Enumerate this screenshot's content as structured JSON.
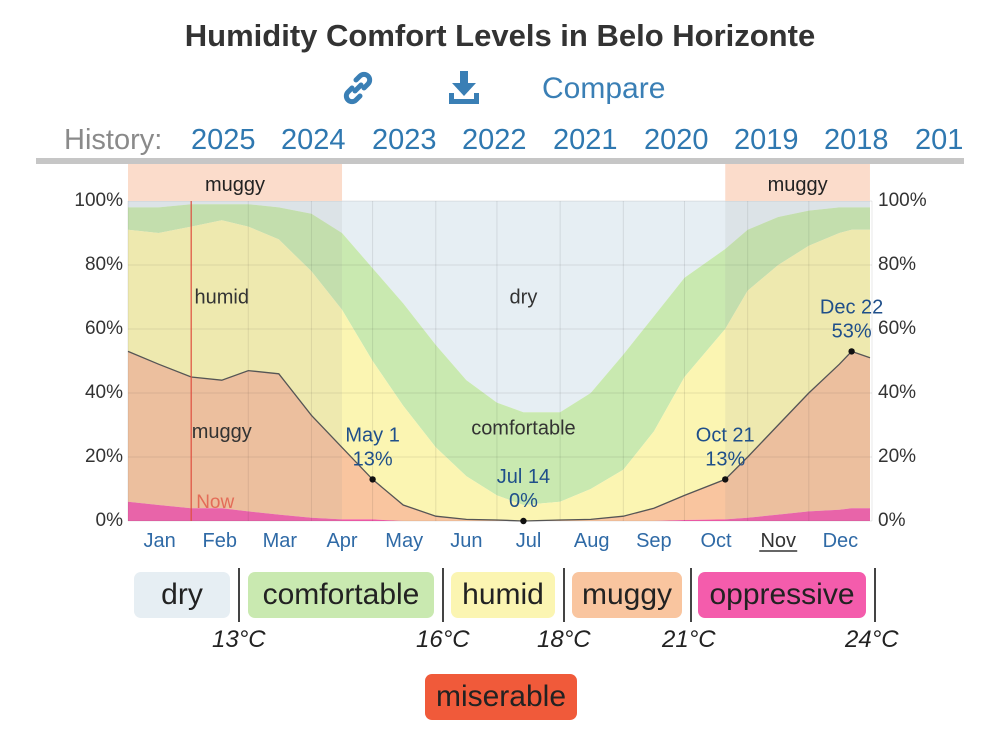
{
  "title": "Humidity Comfort Levels in Belo Horizonte",
  "toolbar": {
    "link_icon": "link-icon",
    "download_icon": "download-icon",
    "compare_label": "Compare"
  },
  "history": {
    "label": "History:",
    "years": [
      "2025",
      "2024",
      "2023",
      "2022",
      "2021",
      "2020",
      "2019",
      "2018",
      "201"
    ]
  },
  "colors": {
    "dry": "#e6eef3",
    "comfortable": "#c9e9b0",
    "humid": "#fbf5b2",
    "muggy": "#f9c59f",
    "oppressive": "#f45cac",
    "miserable": "#f05a3a",
    "muggy_band": "#fbdccb",
    "now_line": "#e05040",
    "axis_text": "#333333",
    "month_text": "#2f6aa6",
    "annotation_text": "#1f4f8a"
  },
  "chart_data": {
    "type": "area",
    "x": [
      "Jan 1",
      "Jan 16",
      "Feb 1",
      "Feb 16",
      "Mar 1",
      "Mar 16",
      "Apr 1",
      "Apr 16",
      "May 1",
      "May 16",
      "Jun 1",
      "Jun 16",
      "Jul 1",
      "Jul 14",
      "Aug 1",
      "Aug 16",
      "Sep 1",
      "Sep 16",
      "Oct 1",
      "Oct 21",
      "Nov 1",
      "Nov 16",
      "Dec 1",
      "Dec 16",
      "Dec 22",
      "Dec 31"
    ],
    "ylim": [
      0,
      100
    ],
    "y_ticks": [
      "0%",
      "20%",
      "40%",
      "60%",
      "80%",
      "100%"
    ],
    "month_labels": [
      "Jan",
      "Feb",
      "Mar",
      "Apr",
      "May",
      "Jun",
      "Jul",
      "Aug",
      "Sep",
      "Oct",
      "Nov",
      "Dec"
    ],
    "current_month": "Nov",
    "series": [
      {
        "name": "oppressive",
        "values": [
          6,
          5,
          4,
          4,
          3,
          2,
          1,
          0.5,
          0.5,
          0,
          0,
          0,
          0,
          0,
          0,
          0,
          0,
          0,
          0.3,
          0.5,
          1,
          2,
          3,
          3.5,
          4,
          4
        ]
      },
      {
        "name": "muggy",
        "values": [
          53,
          49,
          45,
          44,
          47,
          46,
          33,
          23,
          13,
          5,
          1.5,
          0.5,
          0.3,
          0,
          0.3,
          0.5,
          1.5,
          4,
          8,
          13,
          20,
          30,
          40,
          49,
          53,
          51
        ]
      },
      {
        "name": "humid",
        "values": [
          91,
          90,
          92,
          94,
          92,
          88,
          78,
          66,
          50,
          36,
          23,
          14,
          8,
          5,
          6,
          10,
          16,
          28,
          45,
          60,
          72,
          80,
          86,
          90,
          91,
          91
        ]
      },
      {
        "name": "comfortable",
        "values": [
          98,
          98,
          99,
          99,
          99,
          98,
          96,
          90,
          79,
          68,
          55,
          44,
          37,
          34,
          34,
          40,
          52,
          64,
          76,
          85,
          91,
          95,
          97,
          98,
          98,
          98
        ]
      },
      {
        "name": "dry",
        "values": [
          100,
          100,
          100,
          100,
          100,
          100,
          100,
          100,
          100,
          100,
          100,
          100,
          100,
          100,
          100,
          100,
          100,
          100,
          100,
          100,
          100,
          100,
          100,
          100,
          100,
          100
        ]
      }
    ],
    "region_labels": [
      {
        "text": "humid",
        "x": "Feb 16",
        "y": 68
      },
      {
        "text": "dry",
        "x": "Jul 14",
        "y": 68
      },
      {
        "text": "muggy",
        "x": "Feb 16",
        "y": 26
      },
      {
        "text": "comfortable",
        "x": "Jul 14",
        "y": 27
      }
    ],
    "bands": [
      {
        "label": "muggy",
        "from": "Jan 1",
        "to": "Apr 16"
      },
      {
        "label": "muggy",
        "from": "Oct 21",
        "to": "Dec 31"
      }
    ],
    "now": {
      "label": "Now",
      "x": "Feb 1"
    },
    "annotations": [
      {
        "date": "May 1",
        "value": "13%",
        "x": "May 1",
        "y": 13
      },
      {
        "date": "Jul 14",
        "value": "0%",
        "x": "Jul 14",
        "y": 0
      },
      {
        "date": "Oct 21",
        "value": "13%",
        "x": "Oct 21",
        "y": 13
      },
      {
        "date": "Dec 22",
        "value": "53%",
        "x": "Dec 22",
        "y": 53
      }
    ]
  },
  "legend": {
    "categories": [
      {
        "key": "dry",
        "label": "dry"
      },
      {
        "key": "comfortable",
        "label": "comfortable"
      },
      {
        "key": "humid",
        "label": "humid"
      },
      {
        "key": "muggy",
        "label": "muggy"
      },
      {
        "key": "oppressive",
        "label": "oppressive"
      },
      {
        "key": "miserable",
        "label": "miserable"
      }
    ],
    "thresholds": [
      "13°C",
      "16°C",
      "18°C",
      "21°C",
      "24°C"
    ]
  }
}
